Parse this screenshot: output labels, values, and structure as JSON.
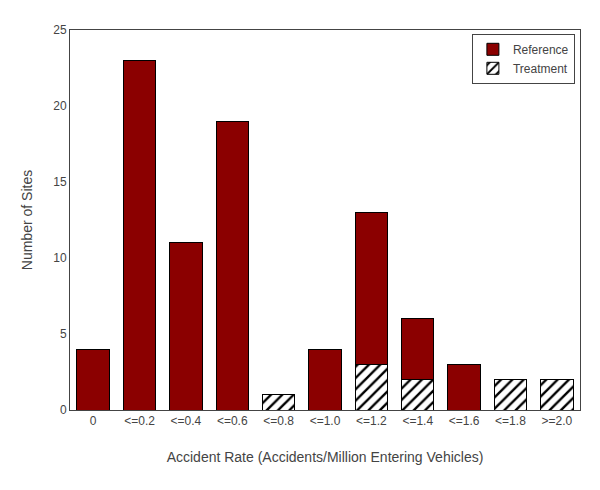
{
  "chart_data": {
    "type": "bar",
    "stacked": true,
    "xlabel": "Accident Rate (Accidents/Million Entering Vehicles)",
    "ylabel": "Number of Sites",
    "categories": [
      "0",
      "<=0.2",
      "<=0.4",
      "<=0.6",
      "<=0.8",
      "<=1.0",
      "<=1.2",
      "<=1.4",
      "<=1.6",
      "<=1.8",
      ">=2.0"
    ],
    "series": [
      {
        "name": "Treatment",
        "color": "white",
        "marker": "hatch",
        "values": [
          0,
          0,
          0,
          0,
          1,
          0,
          3,
          2,
          0,
          2,
          2
        ]
      },
      {
        "name": "Reference",
        "color": "#8B0000",
        "values": [
          4,
          23,
          11,
          19,
          0,
          4,
          10,
          4,
          3,
          0,
          0
        ]
      }
    ],
    "ylim": [
      0,
      25
    ],
    "yticks": [
      0,
      5,
      10,
      15,
      20,
      25
    ],
    "grid": false,
    "legend": "upper right"
  }
}
